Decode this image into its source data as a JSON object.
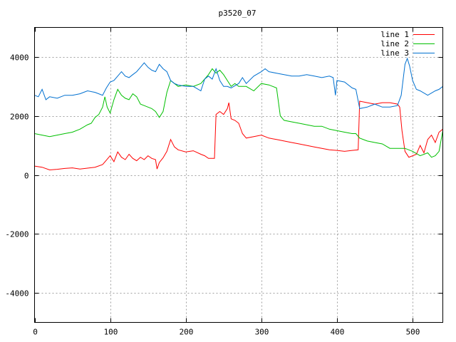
{
  "chart_data": {
    "type": "line",
    "title": "p3520_07",
    "xlabel": "",
    "ylabel": "",
    "xlim": [
      0,
      540
    ],
    "ylim": [
      -5000,
      5000
    ],
    "xticks": [
      0,
      100,
      200,
      300,
      400,
      500
    ],
    "yticks": [
      -4000,
      -2000,
      0,
      2000,
      4000
    ],
    "grid": true,
    "legend_position": "top-right",
    "series": [
      {
        "name": "line 1",
        "color": "#ff0000",
        "points": [
          [
            0,
            300
          ],
          [
            10,
            260
          ],
          [
            20,
            170
          ],
          [
            30,
            190
          ],
          [
            40,
            220
          ],
          [
            50,
            240
          ],
          [
            60,
            200
          ],
          [
            70,
            230
          ],
          [
            80,
            260
          ],
          [
            90,
            350
          ],
          [
            95,
            500
          ],
          [
            100,
            650
          ],
          [
            105,
            450
          ],
          [
            110,
            780
          ],
          [
            115,
            600
          ],
          [
            120,
            520
          ],
          [
            125,
            700
          ],
          [
            130,
            560
          ],
          [
            135,
            480
          ],
          [
            140,
            600
          ],
          [
            145,
            520
          ],
          [
            150,
            650
          ],
          [
            155,
            560
          ],
          [
            160,
            520
          ],
          [
            162,
            200
          ],
          [
            165,
            420
          ],
          [
            170,
            580
          ],
          [
            175,
            800
          ],
          [
            180,
            1200
          ],
          [
            185,
            950
          ],
          [
            190,
            850
          ],
          [
            200,
            780
          ],
          [
            210,
            820
          ],
          [
            220,
            700
          ],
          [
            225,
            650
          ],
          [
            230,
            560
          ],
          [
            238,
            560
          ],
          [
            240,
            2050
          ],
          [
            245,
            2150
          ],
          [
            250,
            2050
          ],
          [
            255,
            2250
          ],
          [
            257,
            2450
          ],
          [
            260,
            1900
          ],
          [
            265,
            1850
          ],
          [
            270,
            1750
          ],
          [
            275,
            1400
          ],
          [
            280,
            1250
          ],
          [
            290,
            1300
          ],
          [
            300,
            1350
          ],
          [
            310,
            1250
          ],
          [
            320,
            1200
          ],
          [
            330,
            1150
          ],
          [
            340,
            1100
          ],
          [
            350,
            1050
          ],
          [
            360,
            1000
          ],
          [
            370,
            950
          ],
          [
            380,
            900
          ],
          [
            390,
            850
          ],
          [
            400,
            830
          ],
          [
            410,
            800
          ],
          [
            420,
            830
          ],
          [
            428,
            850
          ],
          [
            430,
            2500
          ],
          [
            440,
            2450
          ],
          [
            450,
            2400
          ],
          [
            460,
            2450
          ],
          [
            470,
            2450
          ],
          [
            480,
            2400
          ],
          [
            483,
            2300
          ],
          [
            486,
            1500
          ],
          [
            490,
            800
          ],
          [
            495,
            600
          ],
          [
            500,
            650
          ],
          [
            505,
            700
          ],
          [
            510,
            1000
          ],
          [
            515,
            750
          ],
          [
            520,
            1200
          ],
          [
            525,
            1350
          ],
          [
            530,
            1100
          ],
          [
            535,
            1450
          ],
          [
            540,
            1550
          ]
        ]
      },
      {
        "name": "line 2",
        "color": "#00c000",
        "points": [
          [
            0,
            1400
          ],
          [
            10,
            1350
          ],
          [
            20,
            1300
          ],
          [
            30,
            1350
          ],
          [
            40,
            1400
          ],
          [
            50,
            1450
          ],
          [
            60,
            1550
          ],
          [
            70,
            1700
          ],
          [
            75,
            1750
          ],
          [
            80,
            1950
          ],
          [
            85,
            2050
          ],
          [
            90,
            2300
          ],
          [
            93,
            2650
          ],
          [
            96,
            2300
          ],
          [
            100,
            2100
          ],
          [
            105,
            2550
          ],
          [
            110,
            2900
          ],
          [
            115,
            2700
          ],
          [
            120,
            2600
          ],
          [
            125,
            2550
          ],
          [
            130,
            2750
          ],
          [
            135,
            2650
          ],
          [
            140,
            2400
          ],
          [
            145,
            2350
          ],
          [
            150,
            2300
          ],
          [
            155,
            2250
          ],
          [
            160,
            2150
          ],
          [
            165,
            1950
          ],
          [
            170,
            2150
          ],
          [
            175,
            2800
          ],
          [
            180,
            3200
          ],
          [
            185,
            3100
          ],
          [
            190,
            3000
          ],
          [
            200,
            3050
          ],
          [
            210,
            3000
          ],
          [
            220,
            3100
          ],
          [
            230,
            3400
          ],
          [
            235,
            3600
          ],
          [
            240,
            3450
          ],
          [
            245,
            3550
          ],
          [
            250,
            3400
          ],
          [
            255,
            3200
          ],
          [
            260,
            3000
          ],
          [
            265,
            3100
          ],
          [
            270,
            3000
          ],
          [
            280,
            3000
          ],
          [
            290,
            2850
          ],
          [
            300,
            3100
          ],
          [
            310,
            3050
          ],
          [
            320,
            2950
          ],
          [
            325,
            2000
          ],
          [
            330,
            1850
          ],
          [
            340,
            1800
          ],
          [
            350,
            1750
          ],
          [
            360,
            1700
          ],
          [
            370,
            1650
          ],
          [
            380,
            1650
          ],
          [
            390,
            1550
          ],
          [
            400,
            1500
          ],
          [
            410,
            1450
          ],
          [
            420,
            1400
          ],
          [
            425,
            1400
          ],
          [
            430,
            1250
          ],
          [
            440,
            1150
          ],
          [
            450,
            1100
          ],
          [
            460,
            1050
          ],
          [
            470,
            900
          ],
          [
            480,
            900
          ],
          [
            490,
            900
          ],
          [
            500,
            800
          ],
          [
            510,
            650
          ],
          [
            520,
            750
          ],
          [
            525,
            600
          ],
          [
            530,
            650
          ],
          [
            535,
            800
          ],
          [
            540,
            1500
          ]
        ]
      },
      {
        "name": "line 3",
        "color": "#0070d0",
        "points": [
          [
            0,
            2700
          ],
          [
            5,
            2650
          ],
          [
            10,
            2900
          ],
          [
            15,
            2550
          ],
          [
            20,
            2650
          ],
          [
            30,
            2600
          ],
          [
            40,
            2700
          ],
          [
            50,
            2700
          ],
          [
            60,
            2750
          ],
          [
            70,
            2850
          ],
          [
            80,
            2800
          ],
          [
            90,
            2700
          ],
          [
            95,
            2950
          ],
          [
            100,
            3150
          ],
          [
            105,
            3200
          ],
          [
            110,
            3350
          ],
          [
            115,
            3500
          ],
          [
            120,
            3350
          ],
          [
            125,
            3300
          ],
          [
            130,
            3400
          ],
          [
            135,
            3500
          ],
          [
            140,
            3650
          ],
          [
            145,
            3800
          ],
          [
            150,
            3650
          ],
          [
            155,
            3550
          ],
          [
            160,
            3500
          ],
          [
            165,
            3750
          ],
          [
            170,
            3600
          ],
          [
            175,
            3500
          ],
          [
            180,
            3200
          ],
          [
            185,
            3100
          ],
          [
            190,
            3050
          ],
          [
            200,
            3000
          ],
          [
            210,
            3000
          ],
          [
            220,
            2850
          ],
          [
            225,
            3250
          ],
          [
            230,
            3350
          ],
          [
            235,
            3250
          ],
          [
            240,
            3600
          ],
          [
            245,
            3200
          ],
          [
            250,
            3000
          ],
          [
            255,
            3000
          ],
          [
            260,
            2950
          ],
          [
            270,
            3100
          ],
          [
            275,
            3300
          ],
          [
            280,
            3100
          ],
          [
            290,
            3350
          ],
          [
            300,
            3500
          ],
          [
            305,
            3600
          ],
          [
            310,
            3500
          ],
          [
            320,
            3450
          ],
          [
            330,
            3400
          ],
          [
            340,
            3350
          ],
          [
            350,
            3350
          ],
          [
            360,
            3400
          ],
          [
            370,
            3350
          ],
          [
            380,
            3300
          ],
          [
            390,
            3350
          ],
          [
            395,
            3300
          ],
          [
            398,
            2700
          ],
          [
            400,
            3200
          ],
          [
            410,
            3150
          ],
          [
            420,
            2950
          ],
          [
            425,
            2900
          ],
          [
            430,
            2250
          ],
          [
            440,
            2300
          ],
          [
            450,
            2400
          ],
          [
            460,
            2300
          ],
          [
            470,
            2300
          ],
          [
            480,
            2350
          ],
          [
            485,
            2700
          ],
          [
            490,
            3750
          ],
          [
            493,
            3950
          ],
          [
            496,
            3700
          ],
          [
            500,
            3200
          ],
          [
            505,
            2900
          ],
          [
            510,
            2850
          ],
          [
            520,
            2700
          ],
          [
            530,
            2850
          ],
          [
            535,
            2900
          ],
          [
            540,
            3000
          ]
        ]
      }
    ]
  }
}
